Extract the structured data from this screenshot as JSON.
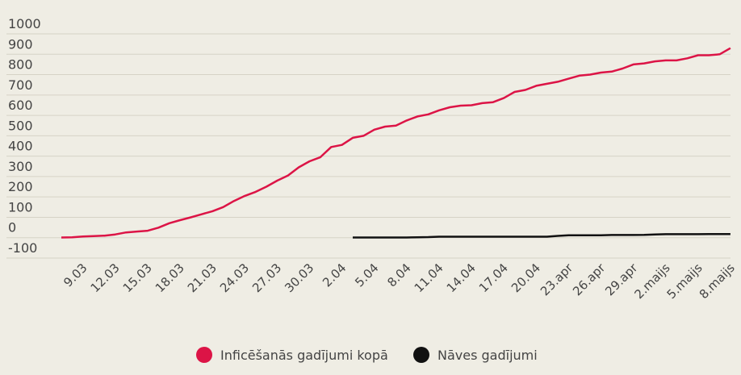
{
  "chart_data": {
    "type": "line",
    "categories": [
      null,
      null,
      "9.03",
      null,
      null,
      "12.03",
      null,
      null,
      "15.03",
      null,
      null,
      "18.03",
      null,
      null,
      "21.03",
      null,
      null,
      "24.03",
      null,
      null,
      "27.03",
      null,
      null,
      "30.03",
      null,
      null,
      "2.04",
      null,
      null,
      "5.04",
      null,
      null,
      "8.04",
      null,
      null,
      "11.04",
      null,
      null,
      "14.04",
      null,
      null,
      "17.04",
      null,
      null,
      "20.04",
      null,
      null,
      "23.apr",
      null,
      null,
      "26.apr",
      null,
      null,
      "29.apr",
      null,
      null,
      "2.maijs",
      null,
      null,
      "5.maijs",
      null,
      null,
      "8.maijs"
    ],
    "series": [
      {
        "name": "Inficēšanās gadījumi kopā",
        "color": "#dc1446",
        "values": [
          1,
          2,
          6,
          8,
          10,
          16,
          26,
          30,
          34,
          49,
          71,
          86,
          100,
          115,
          130,
          150,
          180,
          205,
          225,
          250,
          280,
          305,
          345,
          375,
          395,
          445,
          455,
          490,
          500,
          530,
          545,
          550,
          575,
          595,
          605,
          625,
          640,
          648,
          650,
          660,
          665,
          685,
          715,
          725,
          745,
          755,
          765,
          780,
          795,
          800,
          810,
          815,
          830,
          850,
          855,
          865,
          870,
          870,
          880,
          895,
          895,
          900,
          930
        ]
      },
      {
        "name": "Nāves gadījumi",
        "color": "#111111",
        "values": [
          null,
          null,
          null,
          null,
          null,
          null,
          null,
          null,
          null,
          null,
          null,
          null,
          null,
          null,
          null,
          null,
          null,
          null,
          null,
          null,
          null,
          null,
          null,
          null,
          null,
          null,
          null,
          1,
          1,
          1,
          1,
          1,
          1,
          2,
          3,
          5,
          5,
          5,
          5,
          5,
          5,
          5,
          5,
          5,
          5,
          5,
          9,
          12,
          12,
          12,
          12,
          13,
          13,
          13,
          14,
          16,
          17,
          17,
          17,
          17,
          18,
          18,
          18
        ]
      }
    ],
    "ylim": [
      -100,
      1000
    ],
    "yticks": [
      -100,
      0,
      100,
      200,
      300,
      400,
      500,
      600,
      700,
      800,
      900,
      1000
    ],
    "grid": true
  }
}
